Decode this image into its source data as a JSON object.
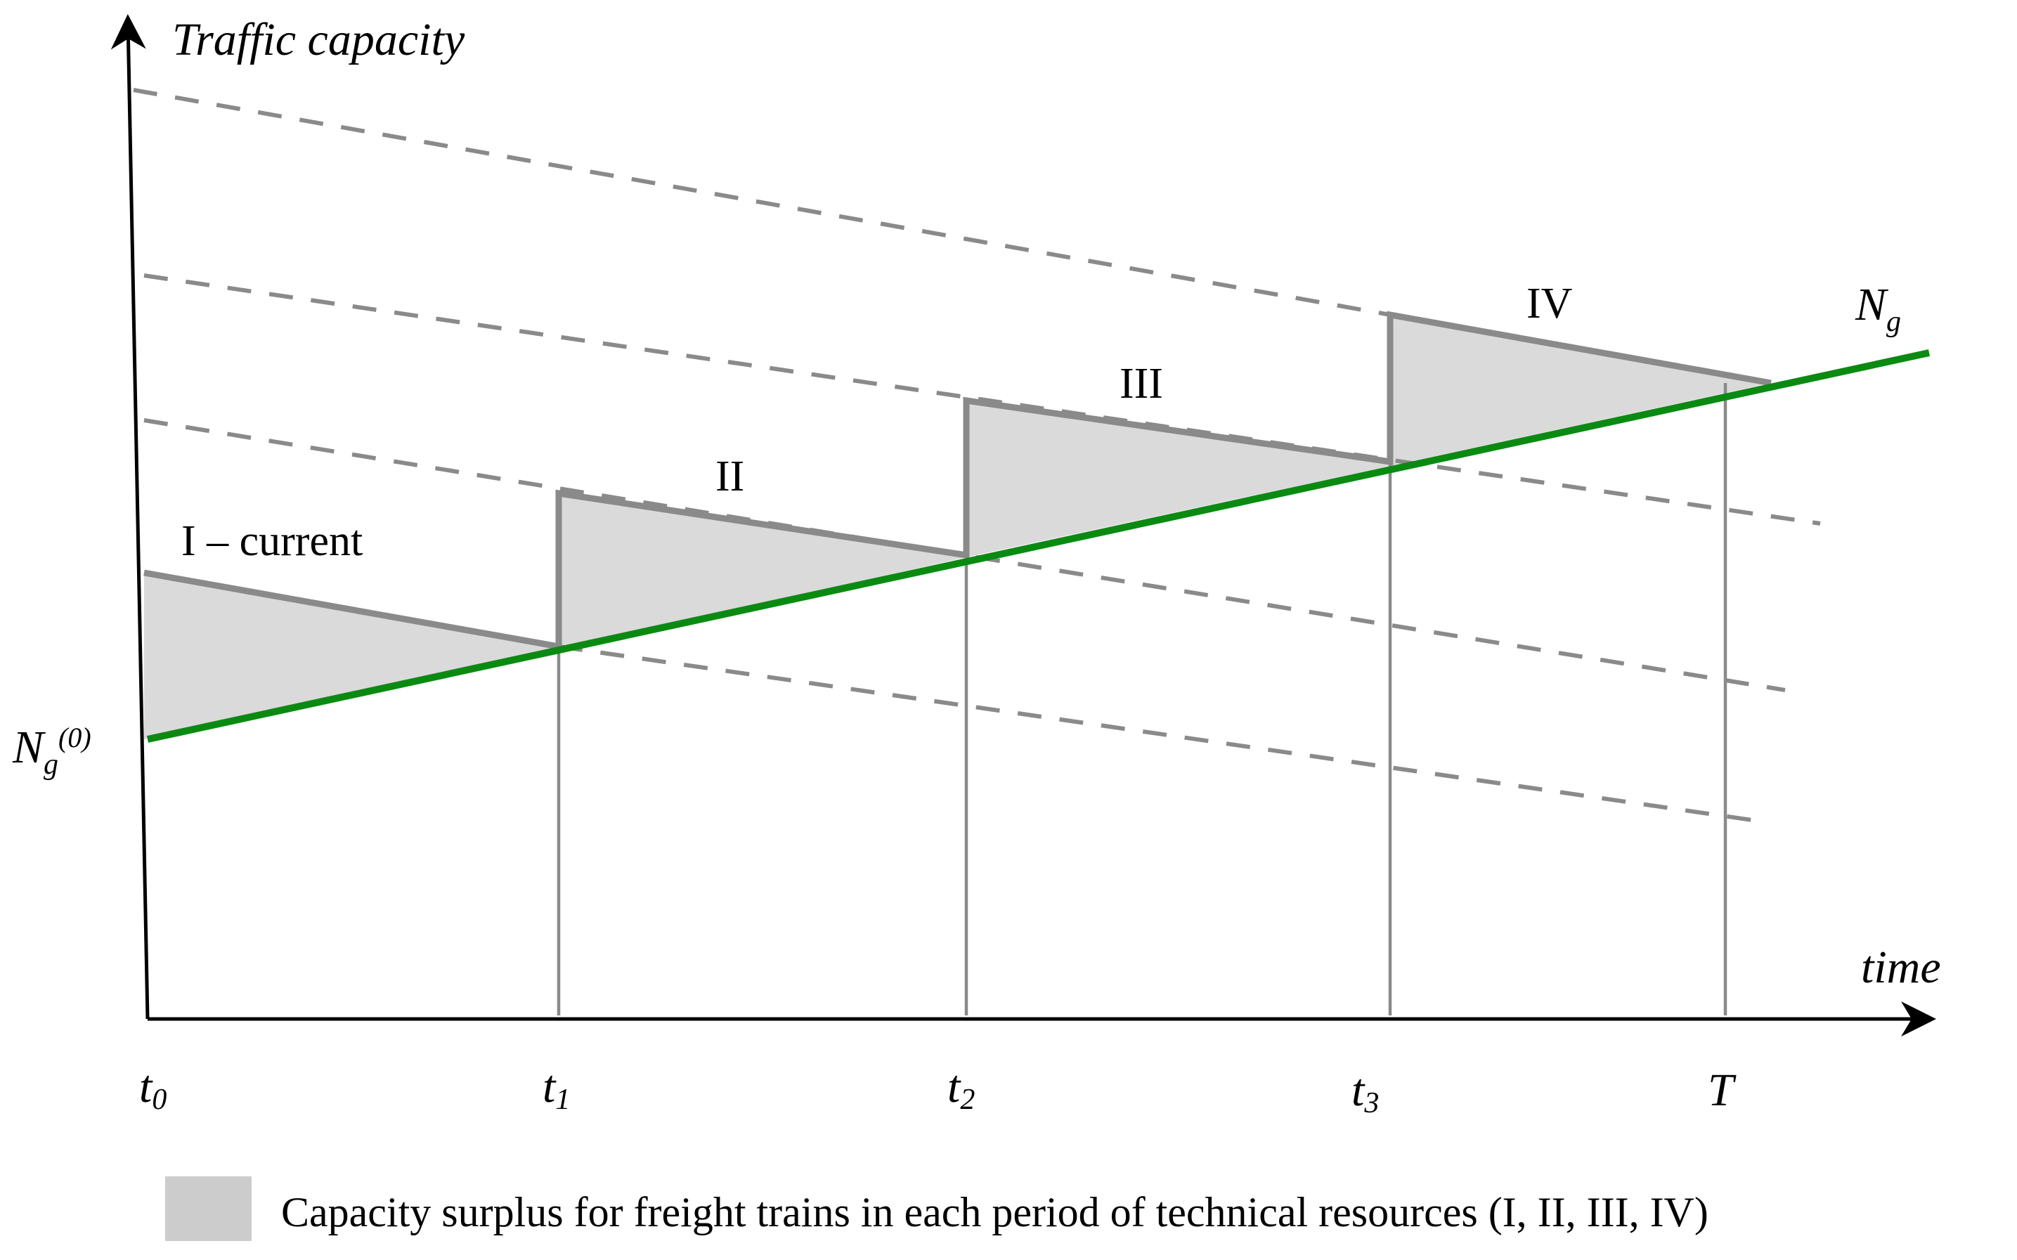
{
  "axes": {
    "y_label": "Traffic capacity",
    "x_label": "time"
  },
  "ticks": {
    "t0": {
      "base": "t",
      "sub": "0"
    },
    "t1": {
      "base": "t",
      "sub": "1"
    },
    "t2": {
      "base": "t",
      "sub": "2"
    },
    "t3": {
      "base": "t",
      "sub": "3"
    },
    "T": {
      "base": "T",
      "sub": ""
    }
  },
  "periods": {
    "I": "I – current",
    "II": "II",
    "III": "III",
    "IV": "IV"
  },
  "demand_line": {
    "label_base": "N",
    "label_sub": "g",
    "start_label_base": "N",
    "start_label_sub": "g",
    "start_label_sup": "(0)",
    "color": "#0b8a12"
  },
  "legend": {
    "text": "Capacity surplus for freight trains in each period of technical resources (I, II, III, IV)",
    "swatch_color": "#cccccc"
  }
}
